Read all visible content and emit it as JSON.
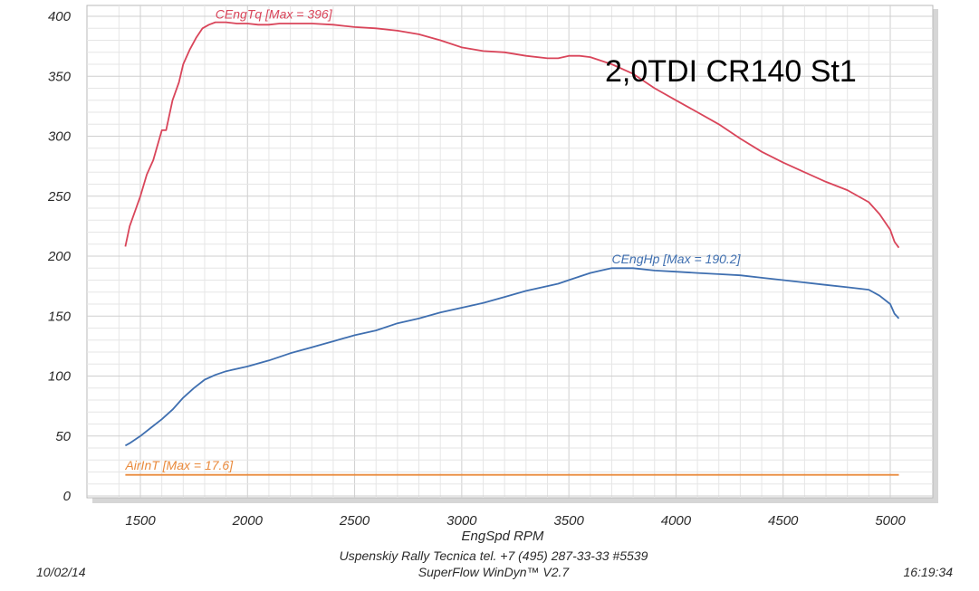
{
  "chart_data": {
    "type": "line",
    "title": "2,0TDI CR140 St1",
    "xlabel": "EngSpd  RPM",
    "ylabel": "",
    "xlim": [
      1400,
      5080
    ],
    "ylim": [
      0,
      400
    ],
    "x_ticks": [
      1500,
      2000,
      2500,
      3000,
      3500,
      4000,
      4500,
      5000
    ],
    "y_ticks": [
      0,
      50,
      100,
      150,
      200,
      250,
      300,
      350,
      400
    ],
    "grid": true,
    "series": [
      {
        "name": "CEngTq [Max = 396]",
        "color": "#d9455a",
        "label_at": [
          1850,
          398
        ],
        "points": [
          [
            1430,
            208
          ],
          [
            1450,
            225
          ],
          [
            1480,
            240
          ],
          [
            1500,
            250
          ],
          [
            1530,
            268
          ],
          [
            1560,
            280
          ],
          [
            1600,
            305
          ],
          [
            1620,
            305
          ],
          [
            1650,
            330
          ],
          [
            1680,
            345
          ],
          [
            1700,
            360
          ],
          [
            1730,
            372
          ],
          [
            1760,
            382
          ],
          [
            1790,
            390
          ],
          [
            1820,
            393
          ],
          [
            1850,
            395
          ],
          [
            1900,
            395
          ],
          [
            1950,
            394
          ],
          [
            2000,
            394
          ],
          [
            2050,
            393
          ],
          [
            2100,
            393
          ],
          [
            2150,
            394
          ],
          [
            2200,
            394
          ],
          [
            2300,
            394
          ],
          [
            2400,
            393
          ],
          [
            2500,
            391
          ],
          [
            2600,
            390
          ],
          [
            2700,
            388
          ],
          [
            2800,
            385
          ],
          [
            2900,
            380
          ],
          [
            3000,
            374
          ],
          [
            3100,
            371
          ],
          [
            3200,
            370
          ],
          [
            3300,
            367
          ],
          [
            3400,
            365
          ],
          [
            3450,
            365
          ],
          [
            3500,
            367
          ],
          [
            3550,
            367
          ],
          [
            3600,
            366
          ],
          [
            3700,
            360
          ],
          [
            3800,
            352
          ],
          [
            3900,
            340
          ],
          [
            4000,
            330
          ],
          [
            4100,
            320
          ],
          [
            4200,
            310
          ],
          [
            4300,
            298
          ],
          [
            4400,
            287
          ],
          [
            4500,
            278
          ],
          [
            4600,
            270
          ],
          [
            4700,
            262
          ],
          [
            4800,
            255
          ],
          [
            4900,
            245
          ],
          [
            4950,
            235
          ],
          [
            5000,
            222
          ],
          [
            5020,
            212
          ],
          [
            5040,
            207
          ]
        ]
      },
      {
        "name": "CEngHp [Max = 190.2]",
        "color": "#3f6fb0",
        "label_at": [
          3700,
          194
        ],
        "points": [
          [
            1430,
            42
          ],
          [
            1450,
            44
          ],
          [
            1500,
            50
          ],
          [
            1550,
            57
          ],
          [
            1600,
            64
          ],
          [
            1650,
            72
          ],
          [
            1700,
            82
          ],
          [
            1750,
            90
          ],
          [
            1800,
            97
          ],
          [
            1850,
            101
          ],
          [
            1900,
            104
          ],
          [
            2000,
            108
          ],
          [
            2100,
            113
          ],
          [
            2200,
            119
          ],
          [
            2300,
            124
          ],
          [
            2400,
            129
          ],
          [
            2500,
            134
          ],
          [
            2600,
            138
          ],
          [
            2700,
            144
          ],
          [
            2800,
            148
          ],
          [
            2900,
            153
          ],
          [
            3000,
            157
          ],
          [
            3100,
            161
          ],
          [
            3200,
            166
          ],
          [
            3300,
            171
          ],
          [
            3400,
            175
          ],
          [
            3450,
            177
          ],
          [
            3500,
            180
          ],
          [
            3550,
            183
          ],
          [
            3600,
            186
          ],
          [
            3650,
            188
          ],
          [
            3700,
            190
          ],
          [
            3800,
            190
          ],
          [
            3900,
            188
          ],
          [
            4000,
            187
          ],
          [
            4100,
            186
          ],
          [
            4200,
            185
          ],
          [
            4300,
            184
          ],
          [
            4400,
            182
          ],
          [
            4500,
            180
          ],
          [
            4600,
            178
          ],
          [
            4700,
            176
          ],
          [
            4800,
            174
          ],
          [
            4900,
            172
          ],
          [
            4950,
            167
          ],
          [
            5000,
            160
          ],
          [
            5020,
            152
          ],
          [
            5040,
            148
          ]
        ]
      },
      {
        "name": "AirInT [Max = 17.6]",
        "color": "#e98a3c",
        "label_at": [
          1430,
          22
        ],
        "points": [
          [
            1430,
            17.6
          ],
          [
            5040,
            17.6
          ]
        ]
      }
    ]
  },
  "footer": {
    "date": "10/02/14",
    "time": "16:19:34",
    "line1": "Uspenskiy Rally Tecnica   tel. +7 (495) 287-33-33 #5539",
    "line2": "SuperFlow WinDyn™ V2.7"
  }
}
